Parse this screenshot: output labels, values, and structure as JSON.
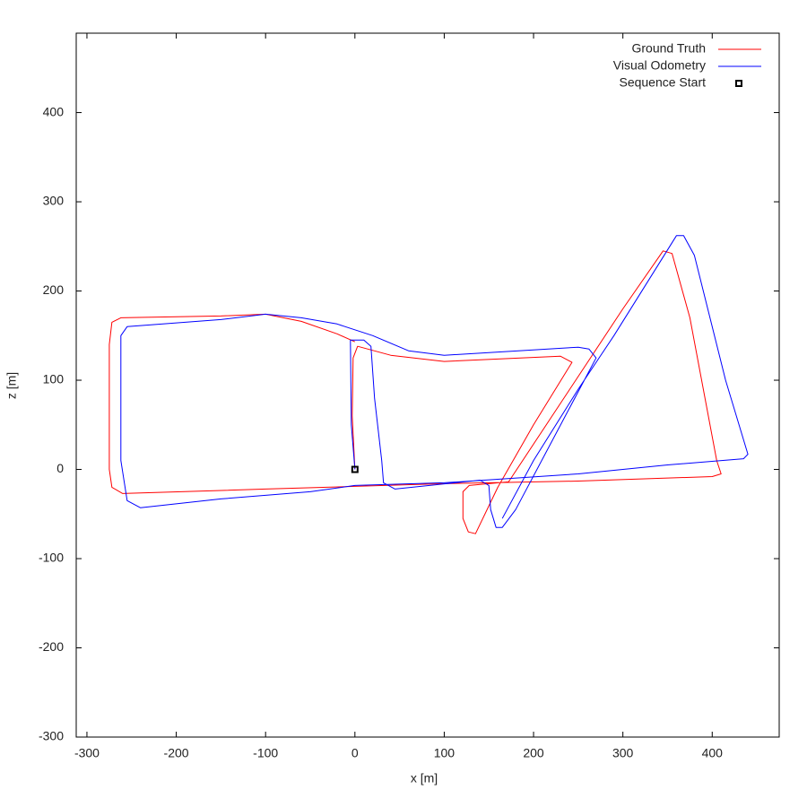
{
  "chart_data": {
    "type": "line",
    "xlabel": "x [m]",
    "ylabel": "z [m]",
    "xlim": [
      -312,
      475
    ],
    "ylim": [
      -300,
      489
    ],
    "xticks": [
      -300,
      -200,
      -100,
      0,
      100,
      200,
      300,
      400
    ],
    "yticks": [
      -300,
      -200,
      -100,
      0,
      100,
      200,
      300,
      400
    ],
    "legend": "upper right",
    "series": [
      {
        "name": "Ground Truth",
        "color": "#ff0000",
        "style": "line",
        "x": [
          0,
          -3,
          -2,
          3,
          40,
          100,
          230,
          243,
          200,
          160,
          135,
          127,
          121,
          121,
          128,
          172,
          300,
          345,
          355,
          375,
          405,
          410,
          400,
          250,
          100,
          0,
          -100,
          -260,
          -272,
          -275,
          -275,
          -272,
          -262,
          -150,
          -100,
          -60,
          -20,
          0
        ],
        "values": [
          0,
          60,
          125,
          138,
          128,
          121,
          127,
          120,
          50,
          -20,
          -72,
          -70,
          -55,
          -25,
          -18,
          -14,
          180,
          245,
          242,
          170,
          10,
          -5,
          -8,
          -13,
          -16,
          -19,
          -22,
          -27,
          -20,
          0,
          140,
          165,
          170,
          172,
          174,
          166,
          152,
          143
        ]
      },
      {
        "name": "Visual Odometry",
        "color": "#0000ff",
        "style": "line",
        "x": [
          0,
          -4,
          -5,
          10,
          18,
          22,
          30,
          32,
          45,
          140,
          150,
          152,
          158,
          165,
          180,
          270,
          262,
          250,
          100,
          60,
          20,
          -20,
          -60,
          -100,
          -150,
          -255,
          -262,
          -262,
          -255,
          -240,
          -150,
          -50,
          0,
          100,
          250,
          350,
          435,
          440,
          415,
          380,
          368,
          360,
          340,
          290,
          250,
          200,
          165
        ],
        "values": [
          0,
          50,
          145,
          145,
          138,
          80,
          10,
          -15,
          -22,
          -12,
          -18,
          -45,
          -65,
          -65,
          -45,
          125,
          135,
          137,
          128,
          133,
          150,
          163,
          170,
          174,
          168,
          160,
          150,
          10,
          -35,
          -43,
          -33,
          -25,
          -18,
          -15,
          -5,
          5,
          12,
          17,
          100,
          240,
          262,
          262,
          230,
          150,
          90,
          10,
          -55
        ]
      },
      {
        "name": "Sequence Start",
        "color": "#000000",
        "style": "square",
        "x": [
          0
        ],
        "values": [
          0
        ]
      }
    ]
  }
}
